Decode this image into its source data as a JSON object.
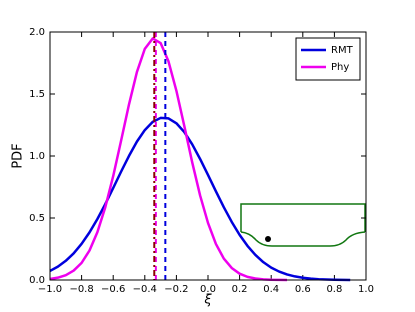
{
  "chart_data": {
    "type": "line",
    "x_label": "ξ",
    "y_label": "PDF",
    "x": [
      -1.0,
      -0.95,
      -0.9,
      -0.85,
      -0.8,
      -0.75,
      -0.7,
      -0.65,
      -0.6,
      -0.55,
      -0.5,
      -0.45,
      -0.4,
      -0.35,
      -0.3,
      -0.25,
      -0.2,
      -0.15,
      -0.1,
      -0.05,
      0.0,
      0.05,
      0.1,
      0.15,
      0.2,
      0.25,
      0.3,
      0.35,
      0.4,
      0.45,
      0.5,
      0.55,
      0.6,
      0.65,
      0.7,
      0.75,
      0.8,
      0.85,
      0.9,
      0.95,
      1.0
    ],
    "series": [
      {
        "name": "RMT",
        "color": "#0000dd",
        "values": [
          0.073,
          0.108,
          0.155,
          0.215,
          0.292,
          0.384,
          0.492,
          0.612,
          0.742,
          0.874,
          1.001,
          1.116,
          1.209,
          1.275,
          1.307,
          1.303,
          1.264,
          1.193,
          1.094,
          0.976,
          0.847,
          0.715,
          0.587,
          0.469,
          0.364,
          0.275,
          0.202,
          0.144,
          0.1,
          0.068,
          0.045,
          0.029,
          0.018,
          0.011,
          0.006,
          0.004,
          0.002,
          0.001,
          0.0,
          null,
          null
        ]
      },
      {
        "name": "Phy",
        "color": "#ee00ee",
        "values": [
          0.008,
          0.019,
          0.039,
          0.076,
          0.138,
          0.238,
          0.386,
          0.587,
          0.838,
          1.124,
          1.416,
          1.677,
          1.864,
          1.948,
          1.911,
          1.763,
          1.526,
          1.242,
          0.949,
          0.682,
          0.46,
          0.291,
          0.173,
          0.097,
          0.051,
          0.025,
          0.012,
          0.005,
          0.002,
          0.001,
          0.0,
          null,
          null,
          null,
          null,
          null,
          null,
          null,
          null,
          null,
          null
        ]
      }
    ],
    "vlines": [
      {
        "value": -0.27,
        "color": "#0000dd",
        "dash": "5,4"
      },
      {
        "value": -0.33,
        "color": "#ee00ee",
        "dash": "5,4"
      },
      {
        "value": -0.34,
        "color": "#8b0000",
        "dash": "6,3,2,3"
      }
    ],
    "xlim": [
      -1.0,
      1.0
    ],
    "ylim": [
      0.0,
      2.0
    ],
    "xticks": [
      {
        "value": -1.0,
        "label": "−1.0"
      },
      {
        "value": -0.8,
        "label": "−0.8"
      },
      {
        "value": -0.6,
        "label": "−0.6"
      },
      {
        "value": -0.4,
        "label": "−0.4"
      },
      {
        "value": -0.2,
        "label": "−0.2"
      },
      {
        "value": 0.0,
        "label": "0.0"
      },
      0.2,
      0.4,
      0.6,
      0.8,
      {
        "value": 1.0,
        "label": "1.0"
      }
    ],
    "yticks": [
      {
        "value": 0.0,
        "label": "0.0"
      },
      0.5,
      {
        "value": 1.0,
        "label": "1.0"
      },
      1.5,
      {
        "value": 2.0,
        "label": "2.0"
      }
    ],
    "legend": "upper right"
  }
}
